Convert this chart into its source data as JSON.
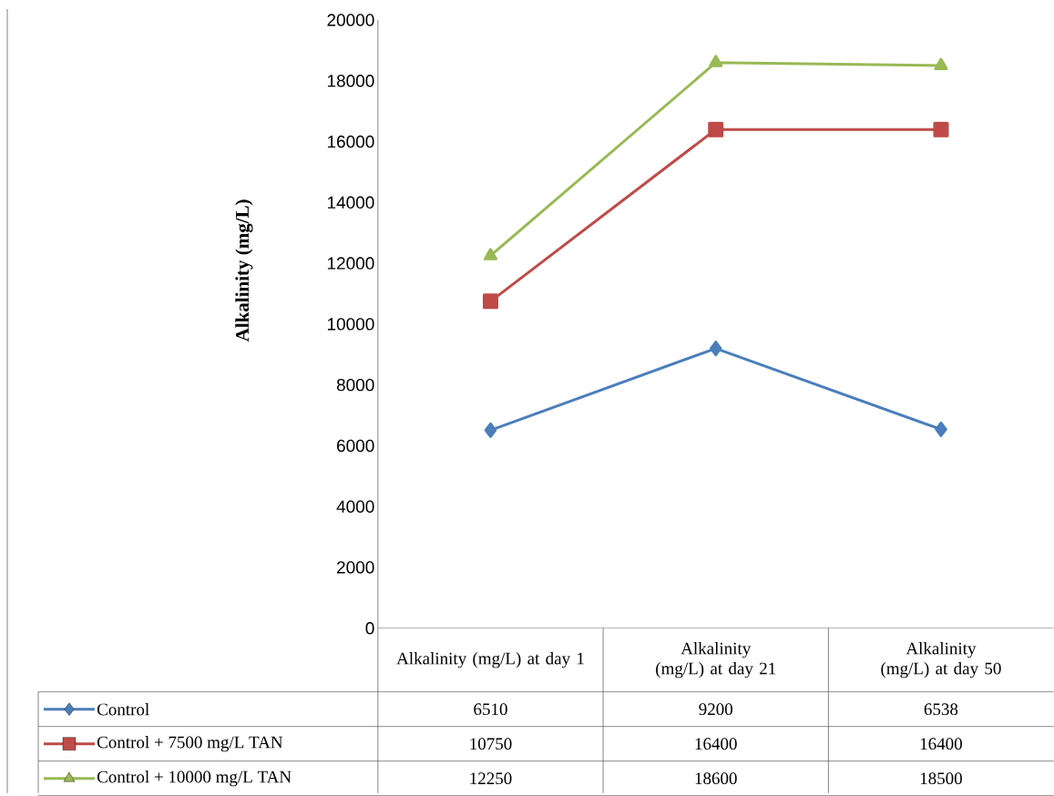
{
  "chart_data": {
    "type": "line",
    "ylabel": "Alkalinity (mg/L)",
    "categories": [
      "Alkalinity (mg/L) at day 1",
      "Alkalinity (mg/L) at day 21",
      "Alkalinity (mg/L) at day 50"
    ],
    "series": [
      {
        "name": "Control",
        "color": "#4a7ebb",
        "marker": "diamond",
        "values": [
          6510,
          9200,
          6538
        ]
      },
      {
        "name": "Control + 7500 mg/L TAN",
        "color": "#be4b48",
        "marker": "square",
        "values": [
          10750,
          16400,
          16400
        ]
      },
      {
        "name": "Control + 10000 mg/L TAN",
        "color": "#98b954",
        "marker": "triangle",
        "values": [
          12250,
          18600,
          18500
        ]
      }
    ],
    "ylim": [
      0,
      20000
    ],
    "yticks": [
      0,
      2000,
      4000,
      6000,
      8000,
      10000,
      12000,
      14000,
      16000,
      18000,
      20000
    ],
    "line_style": "solid",
    "grid": false,
    "legend": "bottom",
    "data_labels": true
  }
}
